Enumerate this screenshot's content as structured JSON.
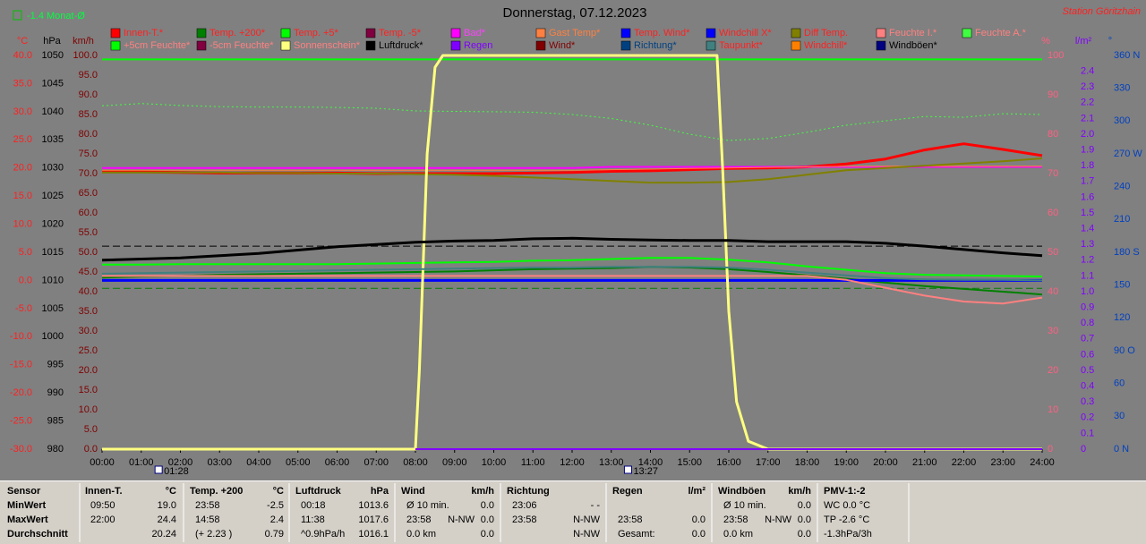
{
  "chart_data": {
    "type": "line",
    "title": "Donnerstag, 07.12.2023",
    "station": "Station Göritzhain",
    "monthly_avg_label": "-1.4 Monat-Ø",
    "x": [
      0,
      1,
      2,
      3,
      4,
      5,
      6,
      7,
      8,
      9,
      10,
      11,
      12,
      13,
      14,
      15,
      16,
      17,
      18,
      19,
      20,
      21,
      22,
      23,
      24
    ],
    "xlim": [
      0,
      24
    ],
    "xticks": [
      {
        "value": 0,
        "label": "00:00"
      },
      {
        "value": 1,
        "label": "01:00"
      },
      {
        "value": 2,
        "label": "02:00"
      },
      {
        "value": 3,
        "label": "03:00"
      },
      {
        "value": 4,
        "label": "04:00"
      },
      {
        "value": 5,
        "label": "05:00"
      },
      {
        "value": 6,
        "label": "06:00"
      },
      {
        "value": 7,
        "label": "07:00"
      },
      {
        "value": 8,
        "label": "08:00"
      },
      {
        "value": 9,
        "label": "09:00"
      },
      {
        "value": 10,
        "label": "10:00"
      },
      {
        "value": 11,
        "label": "11:00"
      },
      {
        "value": 12,
        "label": "12:00"
      },
      {
        "value": 13,
        "label": "13:00"
      },
      {
        "value": 14,
        "label": "14:00"
      },
      {
        "value": 15,
        "label": "15:00"
      },
      {
        "value": 16,
        "label": "16:00"
      },
      {
        "value": 17,
        "label": "17:00"
      },
      {
        "value": 18,
        "label": "18:00"
      },
      {
        "value": 19,
        "label": "19:00"
      },
      {
        "value": 20,
        "label": "20:00"
      },
      {
        "value": 21,
        "label": "21:00"
      },
      {
        "value": 22,
        "label": "22:00"
      },
      {
        "value": 23,
        "label": "23:00"
      },
      {
        "value": 24,
        "label": "24:00"
      }
    ],
    "axes": {
      "c": {
        "label": "°C",
        "color": "#ff2020",
        "side": "left",
        "ylim": [
          -30,
          40
        ],
        "yticks": [
          {
            "value": 40,
            "label": "40.0"
          },
          {
            "value": 35,
            "label": "35.0"
          },
          {
            "value": 30,
            "label": "30.0"
          },
          {
            "value": 25,
            "label": "25.0"
          },
          {
            "value": 20,
            "label": "20.0"
          },
          {
            "value": 15,
            "label": "15.0"
          },
          {
            "value": 10,
            "label": "10.0"
          },
          {
            "value": 5,
            "label": "5.0"
          },
          {
            "value": 0,
            "label": "0.0"
          },
          {
            "value": -5,
            "label": "-5.0"
          },
          {
            "value": -10,
            "label": "-10.0"
          },
          {
            "value": -15,
            "label": "-15.0"
          },
          {
            "value": -20,
            "label": "-20.0"
          },
          {
            "value": -25,
            "label": "-25.0"
          },
          {
            "value": -30,
            "label": "-30.0"
          }
        ]
      },
      "hpa": {
        "label": "hPa",
        "color": "#000000",
        "side": "left",
        "ylim": [
          980,
          1050
        ],
        "yticks": [
          1050,
          1045,
          1040,
          1035,
          1030,
          1025,
          1020,
          1015,
          1010,
          1005,
          1000,
          995,
          990,
          985,
          980
        ]
      },
      "kmh": {
        "label": "km/h",
        "color": "#800000",
        "side": "left",
        "ylim": [
          0,
          100
        ],
        "yticks": [
          {
            "value": 100,
            "label": "100.0"
          },
          {
            "value": 95,
            "label": "95.0"
          },
          {
            "value": 90,
            "label": "90.0"
          },
          {
            "value": 85,
            "label": "85.0"
          },
          {
            "value": 80,
            "label": "80.0"
          },
          {
            "value": 75,
            "label": "75.0"
          },
          {
            "value": 70,
            "label": "70.0"
          },
          {
            "value": 65,
            "label": "65.0"
          },
          {
            "value": 60,
            "label": "60.0"
          },
          {
            "value": 55,
            "label": "55.0"
          },
          {
            "value": 50,
            "label": "50.0"
          },
          {
            "value": 45,
            "label": "45.0"
          },
          {
            "value": 40,
            "label": "40.0"
          },
          {
            "value": 35,
            "label": "35.0"
          },
          {
            "value": 30,
            "label": "30.0"
          },
          {
            "value": 25,
            "label": "25.0"
          },
          {
            "value": 20,
            "label": "20.0"
          },
          {
            "value": 15,
            "label": "15.0"
          },
          {
            "value": 10,
            "label": "10.0"
          },
          {
            "value": 5,
            "label": "5.0"
          },
          {
            "value": 0,
            "label": "0.0"
          }
        ]
      },
      "pct": {
        "label": "%",
        "color": "#ff6080",
        "side": "right",
        "ylim": [
          0,
          100
        ],
        "yticks": [
          100,
          90,
          80,
          70,
          60,
          50,
          40,
          30,
          20,
          10,
          0
        ]
      },
      "rain": {
        "label": "l/m²",
        "color": "#8000ff",
        "side": "right",
        "ylim": [
          0,
          2.5
        ],
        "yticks": [
          2.4,
          2.3,
          2.2,
          2.1,
          {
            "value": 2,
            "label": "2.0"
          },
          1.9,
          1.8,
          1.7,
          1.6,
          1.5,
          1.4,
          1.3,
          1.2,
          1.1,
          {
            "value": 1,
            "label": "1.0"
          },
          0.9,
          0.8,
          0.7,
          0.6,
          0.5,
          0.4,
          0.3,
          0.2,
          0.1,
          0
        ]
      },
      "deg": {
        "label": "°",
        "color": "#0040c0",
        "side": "right",
        "ylim": [
          0,
          360
        ],
        "yticks": [
          {
            "value": 360,
            "label": "360 N"
          },
          330,
          300,
          {
            "value": 270,
            "label": "270 W"
          },
          240,
          210,
          {
            "value": 180,
            "label": "180 S"
          },
          150,
          120,
          {
            "value": 90,
            "label": "90 O"
          },
          60,
          30,
          {
            "value": 0,
            "label": "0 N"
          }
        ]
      }
    },
    "series": [
      {
        "name": "Innen-T.*",
        "color": "#ff0000",
        "text_color": "#ff2020",
        "axis": "c",
        "line_width": 3,
        "values": [
          19.3,
          19.3,
          19.2,
          19.1,
          19.1,
          19.1,
          19.1,
          19.0,
          19.0,
          19.0,
          19.0,
          19.1,
          19.2,
          19.4,
          19.5,
          19.7,
          19.9,
          20.0,
          20.2,
          20.7,
          21.6,
          23.2,
          24.3,
          23.3,
          22.2
        ]
      },
      {
        "name": "Temp. +200*",
        "color": "#008000",
        "text_color": "#ff2020",
        "axis": "c",
        "line_width": 2,
        "values": [
          0.5,
          0.7,
          0.8,
          1.0,
          1.1,
          1.2,
          1.3,
          1.4,
          1.5,
          1.6,
          1.8,
          2.0,
          2.1,
          2.2,
          2.4,
          2.3,
          2.0,
          1.5,
          0.9,
          0.3,
          -0.4,
          -1.0,
          -1.5,
          -2.0,
          -2.5
        ]
      },
      {
        "name": "Temp. +5*",
        "color": "#00ff00",
        "text_color": "#ff2020",
        "axis": "c",
        "line_width": 2,
        "values": [
          2.8,
          2.8,
          2.9,
          2.9,
          2.9,
          2.9,
          2.9,
          3.0,
          3.1,
          3.2,
          3.3,
          3.5,
          3.6,
          3.8,
          4.0,
          4.0,
          3.7,
          3.2,
          2.5,
          1.9,
          1.3,
          1.0,
          0.9,
          0.8,
          0.7
        ]
      },
      {
        "name": "Temp. -5*",
        "color": "#800040",
        "text_color": "#ff2020",
        "axis": "c"
      },
      {
        "name": "Bad*",
        "color": "#ff00ff",
        "text_color": "#ff40ff",
        "axis": "c",
        "line_width": 2,
        "values": [
          20.0,
          20.0,
          20.0,
          20.0,
          20.0,
          20.0,
          20.0,
          20.0,
          20.0,
          20.0,
          20.0,
          20.0,
          20.0,
          20.2,
          20.2,
          20.2,
          20.2,
          20.2,
          20.2,
          20.2,
          20.2,
          20.2,
          20.2,
          20.2,
          20.2
        ]
      },
      {
        "name": "Gast Temp*",
        "color": "#ff8040",
        "text_color": "#ff8040",
        "axis": "c",
        "line_width": 1,
        "values": [
          19.6,
          19.6,
          19.6,
          19.6,
          19.6,
          19.6,
          19.6,
          19.6,
          19.6,
          19.6,
          19.6,
          19.6,
          19.6,
          19.7,
          19.8,
          19.9,
          20.0,
          20.1,
          20.2,
          20.3,
          20.3,
          20.3,
          20.3,
          20.3,
          20.3
        ]
      },
      {
        "name": "Temp. Wind*",
        "color": "#0000ff",
        "text_color": "#ff2020",
        "axis": "c"
      },
      {
        "name": "Windchill X*",
        "color": "#0000ff",
        "text_color": "#ff2020",
        "axis": "c",
        "line_width": 3,
        "values": [
          0.0,
          0.0,
          0.0,
          0.0,
          0.0,
          0.0,
          0.0,
          0.0,
          0.0,
          0.0,
          0.0,
          0.0,
          0.0,
          0.0,
          0.0,
          0.0,
          0.0,
          0.0,
          0.0,
          0.0,
          0.0,
          0.0,
          0.0,
          0.0,
          0.0
        ]
      },
      {
        "name": "Diff Temp.",
        "color": "#808000",
        "text_color": "#ff2020",
        "axis": "c",
        "line_width": 2,
        "values": [
          19.2,
          19.2,
          19.2,
          19.2,
          19.1,
          19.1,
          19.0,
          19.0,
          18.9,
          18.8,
          18.6,
          18.3,
          18.0,
          17.7,
          17.4,
          17.4,
          17.5,
          18.0,
          18.8,
          19.6,
          20.0,
          20.4,
          20.8,
          21.2,
          21.7
        ]
      },
      {
        "name": "Feuchte I.*",
        "color": "#ff8080",
        "text_color": "#ff8080",
        "axis": "pct",
        "line_width": 2,
        "values": [
          44.0,
          44.0,
          44.0,
          44.0,
          44.0,
          44.0,
          44.0,
          44.0,
          44.0,
          44.0,
          44.0,
          44.0,
          44.0,
          44.0,
          44.0,
          44.0,
          44.0,
          44.0,
          44.0,
          43.0,
          41.0,
          39.0,
          37.5,
          37.0,
          38.5
        ]
      },
      {
        "name": "Feuchte A.*",
        "color": "#40ff40",
        "text_color": "#ff8080",
        "axis": "pct",
        "line_width": 1,
        "dash": "dotted",
        "values": [
          87.2,
          87.8,
          87.3,
          87.0,
          86.9,
          86.9,
          86.8,
          86.6,
          85.9,
          85.8,
          85.7,
          85.6,
          85.0,
          84.0,
          82.3,
          80.0,
          78.4,
          78.9,
          80.5,
          82.3,
          83.4,
          84.5,
          84.3,
          85.2,
          85.0
        ]
      },
      {
        "name": "+5cm Feuchte*",
        "color": "#00ff00",
        "text_color": "#ff8080",
        "axis": "pct",
        "line_width": 2,
        "values": [
          99,
          99,
          99,
          99,
          99,
          99,
          99,
          99,
          99,
          99,
          99,
          99,
          99,
          99,
          99,
          99,
          99,
          99,
          99,
          99,
          99,
          99,
          99,
          99,
          99
        ]
      },
      {
        "name": "-5cm Feuchte*",
        "color": "#800040",
        "text_color": "#ff8080",
        "axis": "pct"
      },
      {
        "name": "Sonnenschein*",
        "color": "#ffff80",
        "text_color": "#ff8080",
        "axis": "pct",
        "line_width": 3,
        "x": [
          0,
          8.0,
          8.1,
          8.3,
          8.5,
          8.7,
          9,
          15.7,
          15.85,
          16.0,
          16.2,
          16.5,
          17,
          24
        ],
        "values": [
          0,
          0,
          20,
          75,
          97,
          100,
          100,
          100,
          70,
          35,
          12,
          2,
          0,
          0
        ]
      },
      {
        "name": "Luftdruck*",
        "color": "#000000",
        "text_color": "#000000",
        "axis": "hpa",
        "line_width": 3,
        "values": [
          1013.6,
          1013.8,
          1014.0,
          1014.4,
          1014.8,
          1015.4,
          1016.0,
          1016.4,
          1016.8,
          1017.0,
          1017.1,
          1017.4,
          1017.5,
          1017.3,
          1017.2,
          1017.1,
          1017.1,
          1016.9,
          1016.9,
          1016.9,
          1016.6,
          1016.1,
          1015.5,
          1014.9,
          1014.4
        ]
      },
      {
        "name": "Regen",
        "color": "#8000ff",
        "text_color": "#8000ff",
        "axis": "rain",
        "line_width": 2,
        "values": [
          null,
          null,
          null,
          null,
          null,
          null,
          null,
          null,
          0,
          0,
          0,
          0,
          0,
          0,
          0,
          0,
          0,
          0,
          0,
          0,
          0,
          0,
          0,
          0,
          0
        ]
      },
      {
        "name": "Wind*",
        "color": "#800000",
        "text_color": "#800000",
        "axis": "kmh"
      },
      {
        "name": "Richtung*",
        "color": "#004080",
        "text_color": "#004080",
        "axis": "deg"
      },
      {
        "name": "Taupunkt*",
        "color": "#408080",
        "text_color": "#ff2020",
        "axis": "c",
        "line_width": 2,
        "values": [
          1.2,
          1.3,
          1.4,
          1.5,
          1.6,
          1.7,
          1.8,
          1.9,
          2.0,
          2.1,
          2.2,
          2.3,
          2.3,
          2.4,
          2.4,
          2.4,
          2.3,
          1.9,
          1.4,
          0.9,
          0.4,
          0.2,
          0.1,
          0.1,
          0.0
        ]
      },
      {
        "name": "Windchill*",
        "color": "#ff8000",
        "text_color": "#ff2020",
        "axis": "c"
      },
      {
        "name": "Windböen*",
        "color": "#000080",
        "text_color": "#000000",
        "axis": "kmh"
      }
    ],
    "reference_lines": [
      {
        "axis": "c",
        "value": -1.4,
        "color": "#008000"
      },
      {
        "axis": "hpa",
        "value": 1016.1,
        "color": "#000000"
      }
    ],
    "events": [
      {
        "x": 1.4667,
        "label": "01:28"
      },
      {
        "x": 13.45,
        "label": "13:27"
      }
    ]
  },
  "table": {
    "blocks": [
      {
        "header": [
          "Sensor"
        ],
        "rows": [
          [
            "MinWert"
          ],
          [
            "MaxWert"
          ],
          [
            "Durchschnitt"
          ]
        ]
      },
      {
        "header": [
          "Innen-T.",
          "°C"
        ],
        "rows": [
          [
            "09:50",
            "19.0"
          ],
          [
            "22:00",
            "24.4"
          ],
          [
            "20.24"
          ]
        ]
      },
      {
        "header": [
          "Temp. +200",
          "°C"
        ],
        "rows": [
          [
            "23:58",
            "-2.5"
          ],
          [
            "14:58",
            "2.4"
          ],
          [
            "(+ 2.23 )",
            "0.79"
          ]
        ]
      },
      {
        "header": [
          "Luftdruck",
          "hPa"
        ],
        "rows": [
          [
            "00:18",
            "1013.6"
          ],
          [
            "11:38",
            "1017.6"
          ],
          [
            "^0.9hPa/h",
            "1016.1"
          ]
        ]
      },
      {
        "header": [
          "Wind",
          "km/h"
        ],
        "rows": [
          [
            "Ø 10 min.",
            "0.0"
          ],
          [
            "23:58",
            "N-NW",
            "0.0"
          ],
          [
            "0.0 km",
            "0.0"
          ]
        ]
      },
      {
        "header": [
          "Richtung"
        ],
        "rows": [
          [
            "23:06",
            "- -"
          ],
          [
            "23:58",
            "N-NW"
          ],
          [
            "N-NW"
          ]
        ]
      },
      {
        "header": [
          "Regen",
          "l/m²"
        ],
        "rows": [
          [],
          [
            "23:58",
            "0.0"
          ],
          [
            "Gesamt:",
            "0.0"
          ]
        ]
      },
      {
        "header": [
          "Windböen",
          "km/h"
        ],
        "rows": [
          [
            "Ø 10 min.",
            "0.0"
          ],
          [
            "23:58",
            "N-NW",
            "0.0"
          ],
          [
            "0.0 km",
            "0.0"
          ]
        ]
      },
      {
        "header": [
          "PMV-1:-2"
        ],
        "rows": [
          [
            "WC 0.0 °C"
          ],
          [
            "TP -2.6 °C"
          ],
          [
            "-1.3hPa/3h"
          ]
        ]
      }
    ]
  }
}
